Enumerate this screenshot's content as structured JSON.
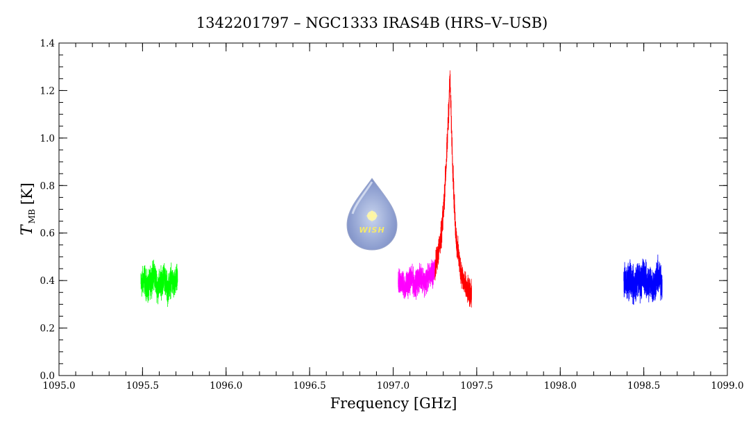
{
  "chart_data": {
    "type": "line",
    "title": "1342201797 – NGC1333 IRAS4B (HRS–V–USB)",
    "xlabel": "Frequency [GHz]",
    "ylabel_symbol": "T",
    "ylabel_subscript": "MB",
    "ylabel_unit": "[K]",
    "xlim": [
      1095.0,
      1099.0
    ],
    "ylim": [
      0.0,
      1.4
    ],
    "x_ticks": [
      "1095.0",
      "1095.5",
      "1096.0",
      "1096.5",
      "1097.0",
      "1097.5",
      "1098.0",
      "1098.5",
      "1099.0"
    ],
    "y_ticks": [
      "0.0",
      "0.2",
      "0.4",
      "0.6",
      "0.8",
      "1.0",
      "1.2",
      "1.4"
    ],
    "grid": false,
    "logo_text": "WISH",
    "series": [
      {
        "color": "#00ff00",
        "x": [
          1095.49,
          1095.51,
          1095.53,
          1095.55,
          1095.57,
          1095.59,
          1095.61,
          1095.63,
          1095.65,
          1095.67,
          1095.69,
          1095.71
        ],
        "y": [
          0.38,
          0.41,
          0.36,
          0.4,
          0.43,
          0.37,
          0.39,
          0.42,
          0.36,
          0.4,
          0.38,
          0.41
        ],
        "noise": 0.09
      },
      {
        "color": "#ff00ff",
        "x": [
          1097.03,
          1097.05,
          1097.07,
          1097.09,
          1097.11,
          1097.13,
          1097.15,
          1097.17,
          1097.19,
          1097.21,
          1097.23,
          1097.25
        ],
        "y": [
          0.38,
          0.4,
          0.37,
          0.39,
          0.41,
          0.38,
          0.4,
          0.42,
          0.39,
          0.41,
          0.43,
          0.44
        ],
        "noise": 0.08
      },
      {
        "color": "#ff0000",
        "x": [
          1097.25,
          1097.27,
          1097.29,
          1097.3,
          1097.31,
          1097.32,
          1097.33,
          1097.34,
          1097.35,
          1097.36,
          1097.37,
          1097.38,
          1097.4,
          1097.42,
          1097.44,
          1097.47
        ],
        "y": [
          0.45,
          0.52,
          0.6,
          0.68,
          0.8,
          0.92,
          1.08,
          1.25,
          1.02,
          0.82,
          0.65,
          0.56,
          0.46,
          0.4,
          0.36,
          0.34
        ],
        "noise": 0.08
      },
      {
        "color": "#0000ff",
        "x": [
          1098.38,
          1098.4,
          1098.42,
          1098.44,
          1098.46,
          1098.48,
          1098.5,
          1098.52,
          1098.54,
          1098.56,
          1098.58,
          1098.61
        ],
        "y": [
          0.4,
          0.38,
          0.42,
          0.37,
          0.41,
          0.39,
          0.43,
          0.38,
          0.4,
          0.37,
          0.42,
          0.39
        ],
        "noise": 0.11
      }
    ]
  }
}
